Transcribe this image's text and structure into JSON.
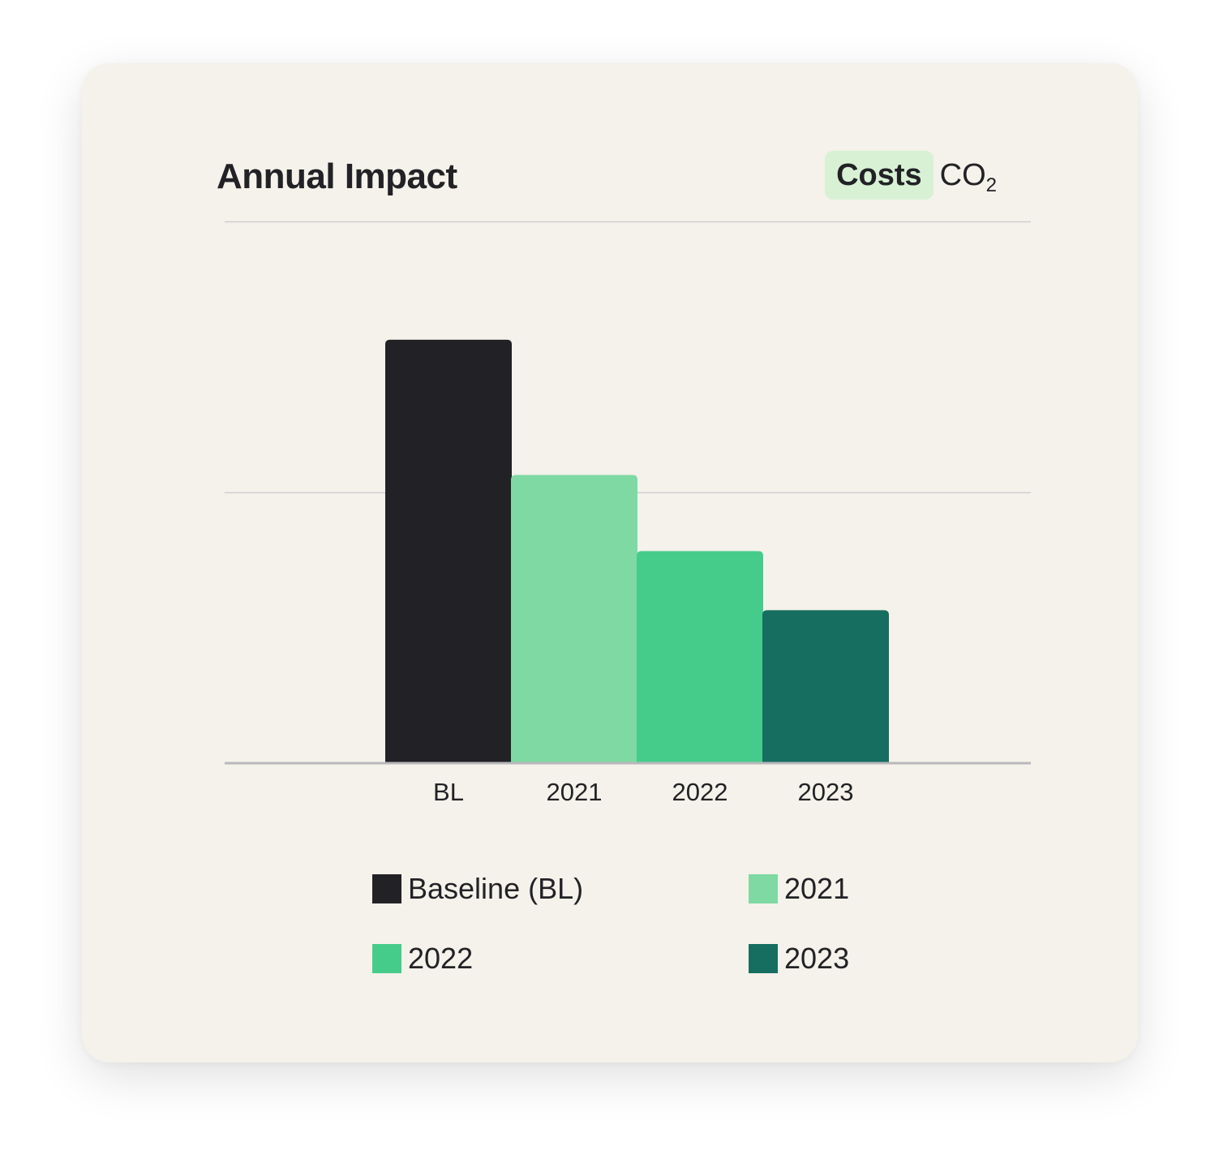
{
  "header": {
    "title": "Annual Impact",
    "toggle": {
      "costs_label": "Costs",
      "co2_label": "CO",
      "co2_subscript": "2",
      "selected": "Costs"
    }
  },
  "colors": {
    "card_background": "#f4f2ea",
    "toggle_active_background": "#d8f1d4",
    "text": "#222226",
    "gridline": "#cfcdd0",
    "baseline_axis": "#b9b8bc"
  },
  "chart_data": {
    "type": "bar",
    "categories": [
      "BL",
      "2021",
      "2022",
      "2023"
    ],
    "values": [
      100,
      68,
      50,
      36
    ],
    "ylim": [
      0,
      128
    ],
    "gridlines_at": [
      64,
      128
    ],
    "grid": true,
    "legend_placement": "bottom",
    "colors": [
      "#222226",
      "#7fd9a3",
      "#46cc8a",
      "#166e60"
    ],
    "legend": [
      {
        "label": "Baseline (BL)",
        "color": "#222226"
      },
      {
        "label": "2021",
        "color": "#7fd9a3"
      },
      {
        "label": "2022",
        "color": "#46cc8a"
      },
      {
        "label": "2023",
        "color": "#166e60"
      }
    ]
  }
}
